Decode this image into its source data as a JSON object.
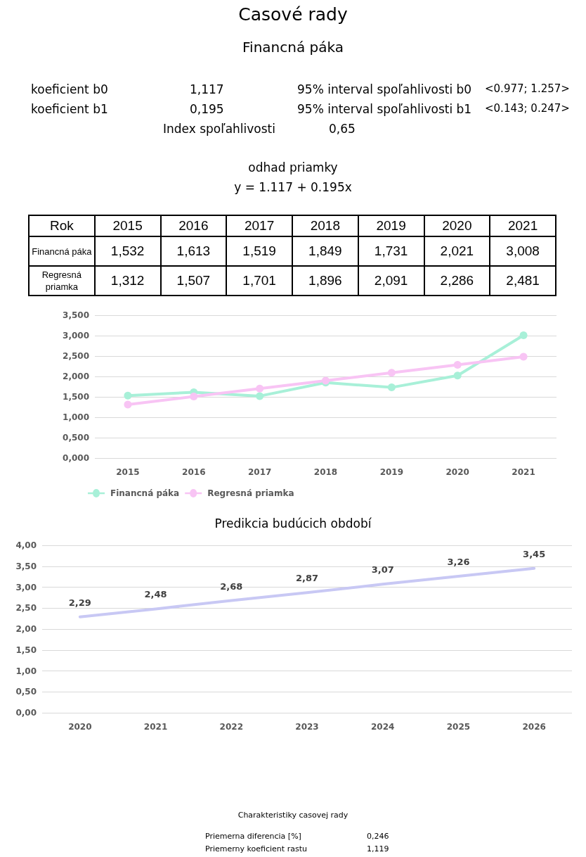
{
  "chart_data": [
    {
      "type": "other",
      "title": "Casové rady",
      "subtitle": "Financná páka",
      "annotations": [
        "koeficient b0",
        "1,117",
        "95% interval spoľahlivosti b0",
        "<0.977; 1.257>",
        "koeficient b1",
        "0,195",
        "95% interval spoľahlivosti b1",
        "<0.143; 0.247>",
        "Index spoľahlivosti",
        "0,65",
        "odhad priamky",
        "y = 1.117 + 0.195x"
      ]
    },
    {
      "type": "line",
      "xlabel": "Rok",
      "categories": [
        "2015",
        "2016",
        "2017",
        "2018",
        "2019",
        "2020",
        "2021"
      ],
      "series": [
        {
          "name": "Financná páka",
          "color": "#a8f0d8",
          "values": [
            1.532,
            1.613,
            1.519,
            1.849,
            1.731,
            2.021,
            3.008
          ],
          "value_labels": [
            "1,532",
            "1,613",
            "1,519",
            "1,849",
            "1,731",
            "2,021",
            "3,008"
          ]
        },
        {
          "name": "Regresná priamka",
          "color": "#f8c4f4",
          "values": [
            1.312,
            1.507,
            1.701,
            1.896,
            2.091,
            2.286,
            2.481
          ],
          "value_labels": [
            "1,312",
            "1,507",
            "1,701",
            "1,896",
            "2,091",
            "2,286",
            "2,481"
          ]
        }
      ],
      "ylim": [
        0,
        3.5
      ],
      "yticks": [
        {
          "value": 0,
          "label": "0,000"
        },
        {
          "value": 0.5,
          "label": "0,500"
        },
        {
          "value": 1,
          "label": "1,000"
        },
        {
          "value": 1.5,
          "label": "1,500"
        },
        {
          "value": 2,
          "label": "2,000"
        },
        {
          "value": 2.5,
          "label": "2,500"
        },
        {
          "value": 3,
          "label": "3,000"
        },
        {
          "value": 3.5,
          "label": "3,500"
        }
      ],
      "grid": "y",
      "legend": "bottom",
      "marker": "circle"
    },
    {
      "type": "line",
      "title": "Predikcia budúcich období",
      "categories": [
        "2020",
        "2021",
        "2022",
        "2023",
        "2024",
        "2025",
        "2026"
      ],
      "series": [
        {
          "color": "#c8c8f4",
          "values": [
            2.29,
            2.48,
            2.68,
            2.87,
            3.07,
            3.26,
            3.45
          ],
          "value_labels": [
            "2,29",
            "2,48",
            "2,68",
            "2,87",
            "3,07",
            "3,26",
            "3,45"
          ]
        }
      ],
      "ylim": [
        0,
        4
      ],
      "yticks": [
        {
          "value": 0,
          "label": "0,00"
        },
        {
          "value": 0.5,
          "label": "0,50"
        },
        {
          "value": 1,
          "label": "1,00"
        },
        {
          "value": 1.5,
          "label": "1,50"
        },
        {
          "value": 2,
          "label": "2,00"
        },
        {
          "value": 2.5,
          "label": "2,50"
        },
        {
          "value": 3,
          "label": "3,00"
        },
        {
          "value": 3.5,
          "label": "3,50"
        },
        {
          "value": 4,
          "label": "4,00"
        }
      ],
      "grid": "y",
      "marker": "none"
    },
    {
      "type": "other",
      "title": "Charakteristiky casovej rady",
      "annotations": [
        "Priemerna diferencia [%]",
        "0,246",
        "Priemerny koeficient rastu",
        "1,119"
      ]
    }
  ]
}
